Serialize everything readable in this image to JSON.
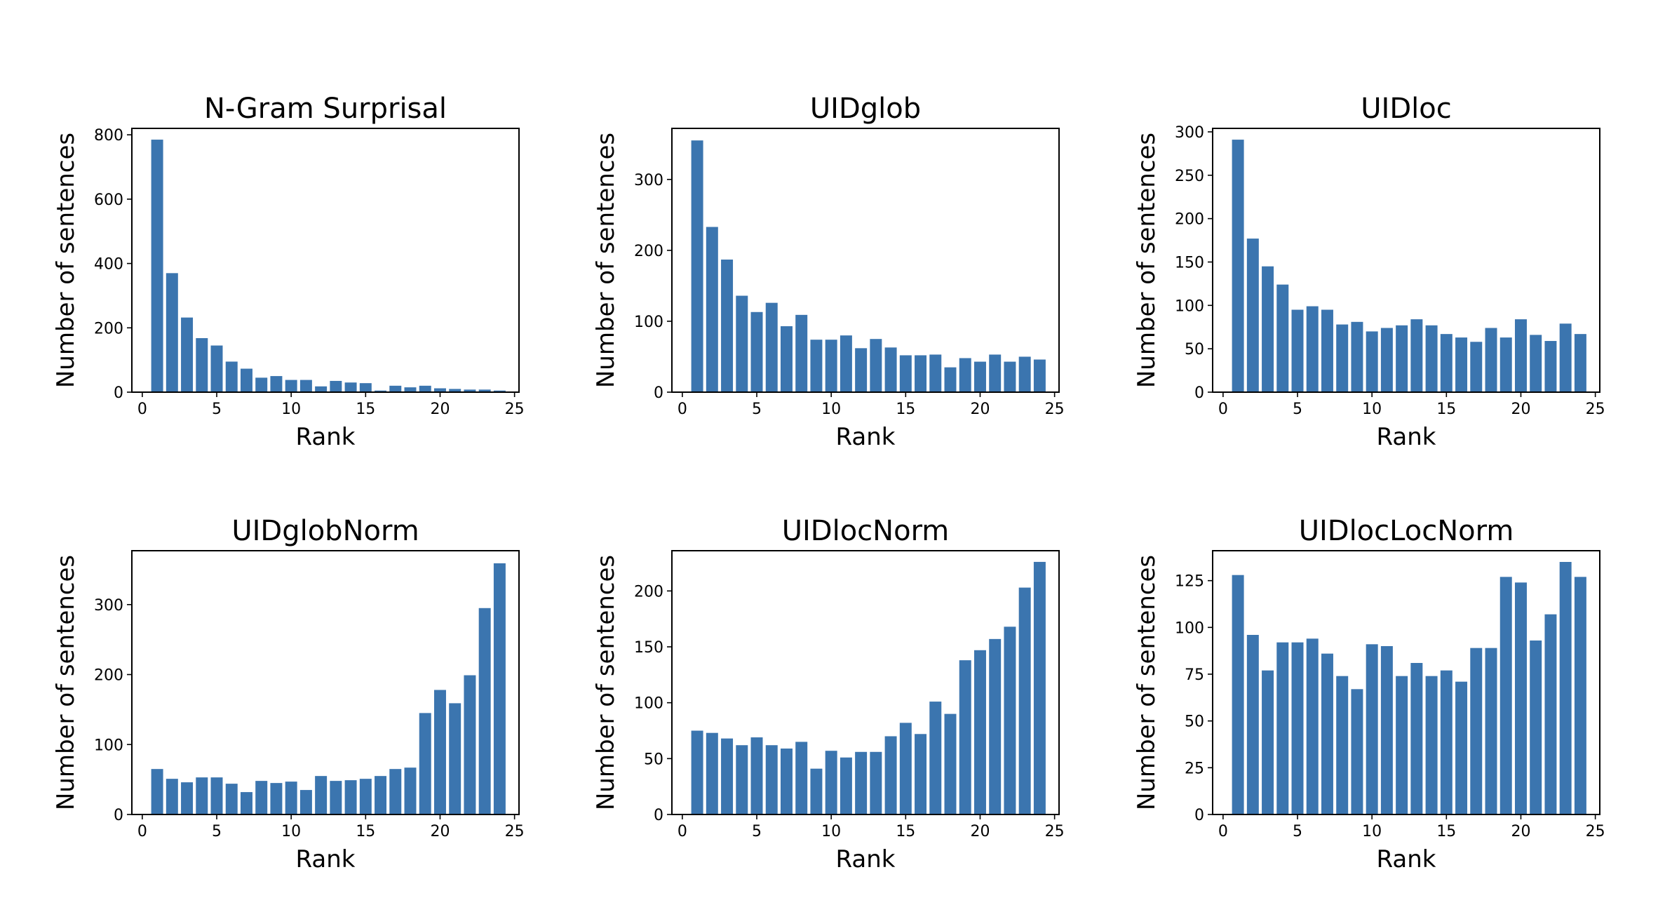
{
  "figure": {
    "bar_color": "#3b75af",
    "layout": "2 rows x 3 columns"
  },
  "chart_data": [
    {
      "type": "bar",
      "title": "N-Gram Surprisal",
      "xlabel": "Rank",
      "ylabel": "Number of sentences",
      "xlim": [
        -0.7,
        25.3
      ],
      "ylim": [
        0,
        820
      ],
      "xticks": [
        0,
        5,
        10,
        15,
        20,
        25
      ],
      "yticks": [
        0,
        200,
        400,
        600,
        800
      ],
      "x": [
        1,
        2,
        3,
        4,
        5,
        6,
        7,
        8,
        9,
        10,
        11,
        12,
        13,
        14,
        15,
        16,
        17,
        18,
        19,
        20,
        21,
        22,
        23,
        24
      ],
      "values": [
        785,
        370,
        232,
        168,
        145,
        95,
        73,
        45,
        50,
        38,
        38,
        18,
        35,
        30,
        28,
        5,
        20,
        15,
        20,
        12,
        10,
        8,
        8,
        5
      ]
    },
    {
      "type": "bar",
      "title": "UIDglob",
      "xlabel": "Rank",
      "ylabel": "Number of sentences",
      "xlim": [
        -0.7,
        25.3
      ],
      "ylim": [
        0,
        372
      ],
      "xticks": [
        0,
        5,
        10,
        15,
        20,
        25
      ],
      "yticks": [
        0,
        100,
        200,
        300
      ],
      "x": [
        1,
        2,
        3,
        4,
        5,
        6,
        7,
        8,
        9,
        10,
        11,
        12,
        13,
        14,
        15,
        16,
        17,
        18,
        19,
        20,
        21,
        22,
        23,
        24
      ],
      "values": [
        355,
        233,
        187,
        136,
        113,
        126,
        93,
        109,
        74,
        74,
        80,
        62,
        75,
        63,
        52,
        52,
        53,
        35,
        48,
        43,
        53,
        43,
        50,
        46
      ]
    },
    {
      "type": "bar",
      "title": "UIDloc",
      "xlabel": "Rank",
      "ylabel": "Number of sentences",
      "xlim": [
        -0.7,
        25.3
      ],
      "ylim": [
        0,
        304
      ],
      "xticks": [
        0,
        5,
        10,
        15,
        20,
        25
      ],
      "yticks": [
        0,
        50,
        100,
        150,
        200,
        250,
        300
      ],
      "x": [
        1,
        2,
        3,
        4,
        5,
        6,
        7,
        8,
        9,
        10,
        11,
        12,
        13,
        14,
        15,
        16,
        17,
        18,
        19,
        20,
        21,
        22,
        23,
        24
      ],
      "values": [
        291,
        177,
        145,
        124,
        95,
        99,
        95,
        78,
        81,
        70,
        74,
        77,
        84,
        77,
        67,
        63,
        58,
        74,
        63,
        84,
        66,
        59,
        79,
        67
      ]
    },
    {
      "type": "bar",
      "title": "UIDglobNorm",
      "xlabel": "Rank",
      "ylabel": "Number of sentences",
      "xlim": [
        -0.7,
        25.3
      ],
      "ylim": [
        0,
        377
      ],
      "xticks": [
        0,
        5,
        10,
        15,
        20,
        25
      ],
      "yticks": [
        0,
        100,
        200,
        300
      ],
      "x": [
        1,
        2,
        3,
        4,
        5,
        6,
        7,
        8,
        9,
        10,
        11,
        12,
        13,
        14,
        15,
        16,
        17,
        18,
        19,
        20,
        21,
        22,
        23,
        24
      ],
      "values": [
        65,
        51,
        46,
        53,
        53,
        44,
        32,
        48,
        45,
        47,
        35,
        55,
        48,
        49,
        51,
        55,
        65,
        67,
        145,
        178,
        159,
        199,
        295,
        359
      ]
    },
    {
      "type": "bar",
      "title": "UIDlocNorm",
      "xlabel": "Rank",
      "ylabel": "Number of sentences",
      "xlim": [
        -0.7,
        25.3
      ],
      "ylim": [
        0,
        236
      ],
      "xticks": [
        0,
        5,
        10,
        15,
        20,
        25
      ],
      "yticks": [
        0,
        50,
        100,
        150,
        200
      ],
      "x": [
        1,
        2,
        3,
        4,
        5,
        6,
        7,
        8,
        9,
        10,
        11,
        12,
        13,
        14,
        15,
        16,
        17,
        18,
        19,
        20,
        21,
        22,
        23,
        24
      ],
      "values": [
        75,
        73,
        68,
        62,
        69,
        62,
        59,
        65,
        41,
        57,
        51,
        56,
        56,
        70,
        82,
        72,
        101,
        90,
        138,
        147,
        157,
        168,
        203,
        226
      ]
    },
    {
      "type": "bar",
      "title": "UIDlocLocNorm",
      "xlabel": "Rank",
      "ylabel": "Number of sentences",
      "xlim": [
        -0.7,
        25.3
      ],
      "ylim": [
        0,
        141
      ],
      "xticks": [
        0,
        5,
        10,
        15,
        20,
        25
      ],
      "yticks": [
        0,
        25,
        50,
        75,
        100,
        125
      ],
      "x": [
        1,
        2,
        3,
        4,
        5,
        6,
        7,
        8,
        9,
        10,
        11,
        12,
        13,
        14,
        15,
        16,
        17,
        18,
        19,
        20,
        21,
        22,
        23,
        24
      ],
      "values": [
        128,
        96,
        77,
        92,
        92,
        94,
        86,
        74,
        67,
        91,
        90,
        74,
        81,
        74,
        77,
        71,
        89,
        89,
        127,
        124,
        93,
        107,
        135,
        127
      ]
    }
  ]
}
